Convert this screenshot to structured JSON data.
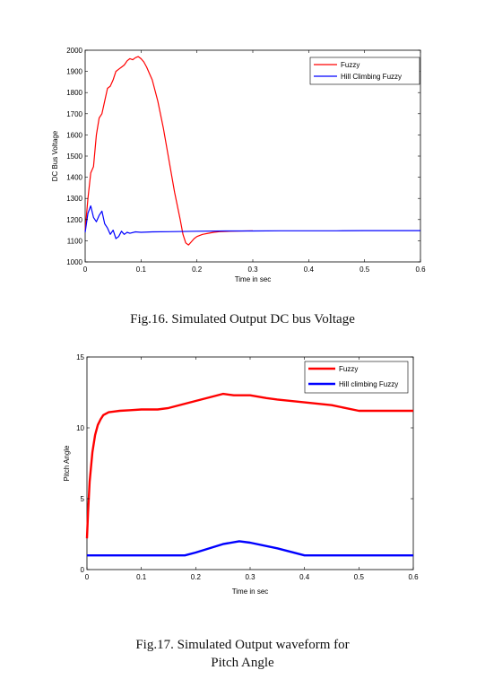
{
  "chart_data": [
    {
      "type": "line",
      "title": "",
      "xlabel": "Time in sec",
      "ylabel": "DC Bus Voltage",
      "xlim": [
        0,
        0.6
      ],
      "ylim": [
        1000,
        2000
      ],
      "xticks": [
        0,
        0.1,
        0.2,
        0.3,
        0.4,
        0.5,
        0.6
      ],
      "xticklabels": [
        "0",
        "0.1",
        "0.2",
        "0.3",
        "0.4",
        "0.5",
        "0.6"
      ],
      "yticks": [
        1000,
        1100,
        1200,
        1300,
        1400,
        1500,
        1600,
        1700,
        1800,
        1900,
        2000
      ],
      "yticklabels": [
        "1000",
        "1100",
        "1200",
        "1300",
        "1400",
        "1500",
        "1600",
        "1700",
        "1800",
        "1900",
        "2000"
      ],
      "grid": false,
      "legend_position": "top-right",
      "series": [
        {
          "name": "Fuzzy",
          "color": "#ff0000",
          "x": [
            0,
            0.005,
            0.01,
            0.015,
            0.02,
            0.025,
            0.03,
            0.035,
            0.04,
            0.045,
            0.05,
            0.055,
            0.06,
            0.065,
            0.07,
            0.075,
            0.08,
            0.085,
            0.09,
            0.095,
            0.1,
            0.105,
            0.11,
            0.115,
            0.12,
            0.13,
            0.14,
            0.15,
            0.16,
            0.17,
            0.175,
            0.18,
            0.185,
            0.19,
            0.195,
            0.2,
            0.21,
            0.22,
            0.23,
            0.24,
            0.26,
            0.3
          ],
          "y": [
            1150,
            1300,
            1420,
            1450,
            1600,
            1680,
            1700,
            1760,
            1820,
            1830,
            1860,
            1900,
            1910,
            1920,
            1930,
            1950,
            1960,
            1955,
            1965,
            1970,
            1960,
            1945,
            1920,
            1890,
            1860,
            1760,
            1630,
            1480,
            1330,
            1200,
            1130,
            1090,
            1080,
            1095,
            1110,
            1120,
            1130,
            1135,
            1140,
            1143,
            1145,
            1147
          ]
        },
        {
          "name": "Hill Climbing Fuzzy",
          "color": "#0000ff",
          "x": [
            0,
            0.005,
            0.01,
            0.015,
            0.02,
            0.025,
            0.03,
            0.035,
            0.04,
            0.045,
            0.05,
            0.055,
            0.06,
            0.065,
            0.07,
            0.075,
            0.08,
            0.09,
            0.1,
            0.12,
            0.15,
            0.2,
            0.25,
            0.3,
            0.35,
            0.4,
            0.45,
            0.5,
            0.55,
            0.6
          ],
          "y": [
            1140,
            1230,
            1265,
            1210,
            1190,
            1220,
            1240,
            1180,
            1160,
            1130,
            1150,
            1110,
            1120,
            1145,
            1130,
            1140,
            1135,
            1142,
            1140,
            1142,
            1143,
            1145,
            1146,
            1146,
            1147,
            1147,
            1147,
            1148,
            1148,
            1148
          ]
        }
      ]
    },
    {
      "type": "line",
      "title": "",
      "xlabel": "Time in sec",
      "ylabel": "Pitch Angle",
      "xlim": [
        0,
        0.6
      ],
      "ylim": [
        0,
        15
      ],
      "xticks": [
        0,
        0.1,
        0.2,
        0.3,
        0.4,
        0.5,
        0.6
      ],
      "xticklabels": [
        "0",
        "0.1",
        "0.2",
        "0.3",
        "0.4",
        "0.5",
        "0.6"
      ],
      "yticks": [
        0,
        5,
        10,
        15
      ],
      "yticklabels": [
        "0",
        "5",
        "10",
        "15"
      ],
      "grid": false,
      "legend_position": "top-right",
      "series": [
        {
          "name": "Fuzzy",
          "color": "#ff0000",
          "x": [
            0,
            0.002,
            0.005,
            0.01,
            0.015,
            0.02,
            0.025,
            0.03,
            0.035,
            0.04,
            0.05,
            0.06,
            0.08,
            0.1,
            0.13,
            0.15,
            0.2,
            0.25,
            0.27,
            0.3,
            0.33,
            0.35,
            0.4,
            0.45,
            0.5,
            0.55,
            0.6
          ],
          "y": [
            2.2,
            4.0,
            6.2,
            8.3,
            9.5,
            10.2,
            10.6,
            10.9,
            11.0,
            11.1,
            11.15,
            11.2,
            11.25,
            11.3,
            11.3,
            11.4,
            11.9,
            12.4,
            12.3,
            12.3,
            12.1,
            12.0,
            11.8,
            11.6,
            11.2,
            11.2,
            11.2
          ]
        },
        {
          "name": "Hill climbing Fuzzy",
          "color": "#0000ff",
          "x": [
            0,
            0.1,
            0.15,
            0.18,
            0.2,
            0.25,
            0.28,
            0.3,
            0.35,
            0.4,
            0.45,
            0.5,
            0.55,
            0.6
          ],
          "y": [
            1.0,
            1.0,
            1.0,
            1.0,
            1.2,
            1.8,
            2.0,
            1.9,
            1.5,
            1.0,
            1.0,
            1.0,
            1.0,
            1.0
          ]
        }
      ]
    }
  ],
  "captions": {
    "fig16": "Fig.16. Simulated Output DC bus Voltage",
    "fig17_line1": "Fig.17. Simulated Output waveform for",
    "fig17_line2": "Pitch Angle"
  }
}
